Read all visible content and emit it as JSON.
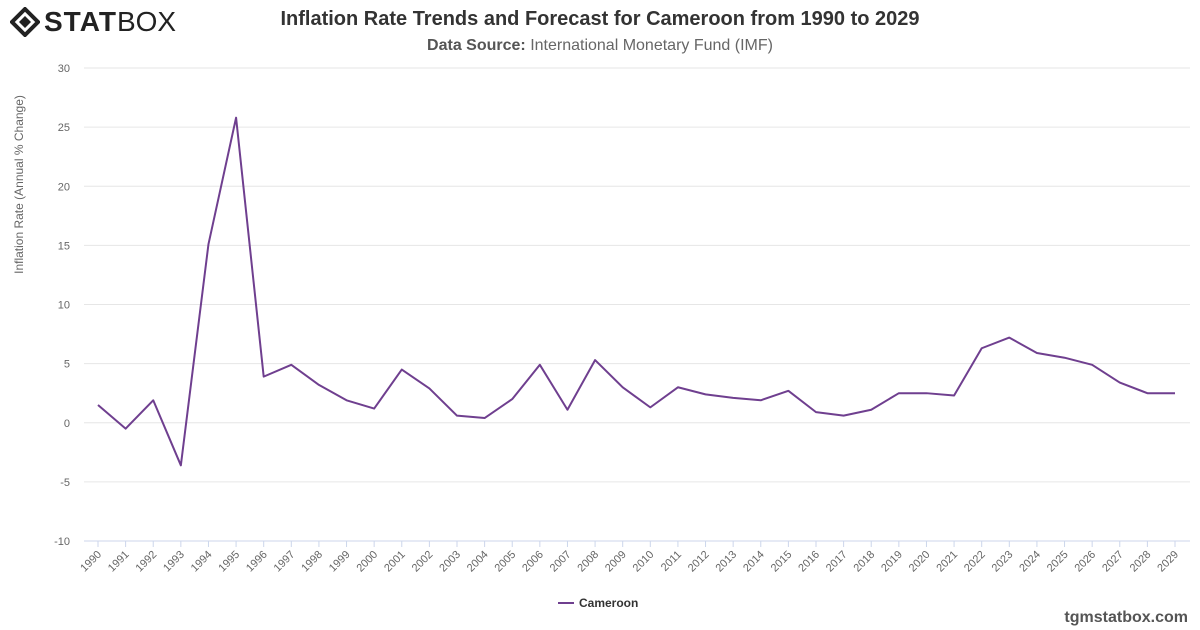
{
  "logo": {
    "text_bold": "STAT",
    "text_thin": "BOX"
  },
  "title": "Inflation Rate Trends and Forecast for Cameroon from 1990 to 2029",
  "subtitle_label": "Data Source:",
  "subtitle_value": "International Monetary Fund (IMF)",
  "credit": "tgmstatbox.com",
  "chart_data": {
    "type": "line",
    "title": "Inflation Rate Trends and Forecast for Cameroon from 1990 to 2029",
    "xlabel": "",
    "ylabel": "Inflation Rate (Annual % Change)",
    "ylim": [
      -10,
      30
    ],
    "yticks": [
      -10,
      -5,
      0,
      5,
      10,
      15,
      20,
      25,
      30
    ],
    "grid": true,
    "legend_placement": "bottom-center",
    "x": [
      "1990",
      "1991",
      "1992",
      "1993",
      "1994",
      "1995",
      "1996",
      "1997",
      "1998",
      "1999",
      "2000",
      "2001",
      "2002",
      "2003",
      "2004",
      "2005",
      "2006",
      "2007",
      "2008",
      "2009",
      "2010",
      "2011",
      "2012",
      "2013",
      "2014",
      "2015",
      "2016",
      "2017",
      "2018",
      "2019",
      "2020",
      "2021",
      "2022",
      "2023",
      "2024",
      "2025",
      "2026",
      "2027",
      "2028",
      "2029"
    ],
    "series": [
      {
        "name": "Cameroon",
        "color": "#6f3f8f",
        "values": [
          1.5,
          -0.5,
          1.9,
          -3.6,
          15.1,
          25.8,
          3.9,
          4.9,
          3.2,
          1.9,
          1.2,
          4.5,
          2.9,
          0.6,
          0.4,
          2.0,
          4.9,
          1.1,
          5.3,
          3.0,
          1.3,
          3.0,
          2.4,
          2.1,
          1.9,
          2.7,
          0.9,
          0.6,
          1.1,
          2.5,
          2.5,
          2.3,
          6.3,
          7.2,
          5.9,
          5.5,
          4.9,
          3.4,
          2.5,
          2.5
        ]
      }
    ]
  }
}
